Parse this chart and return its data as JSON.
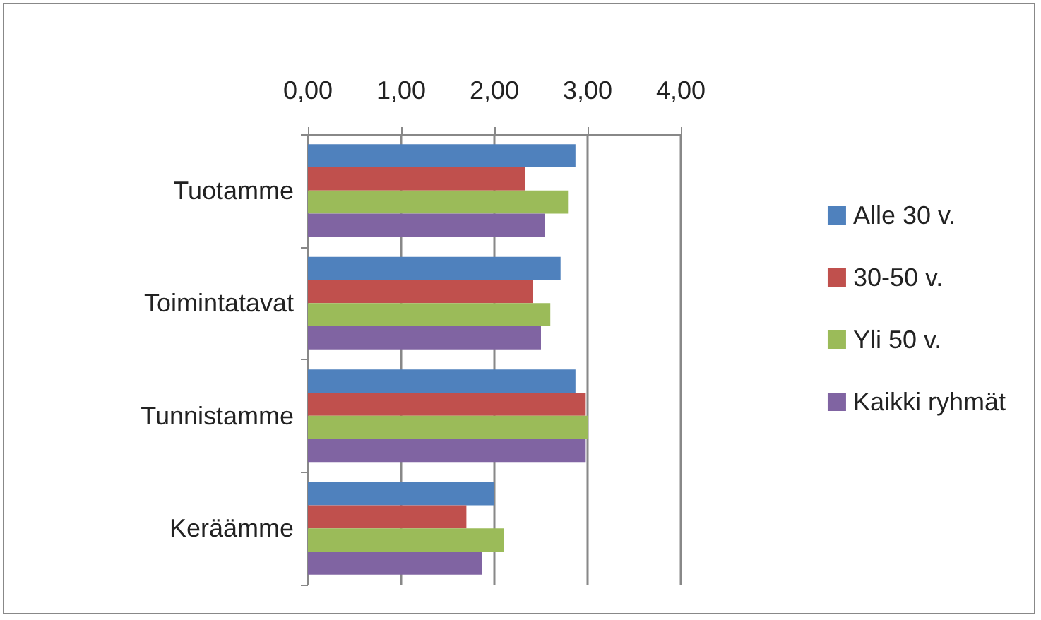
{
  "chart_data": {
    "type": "bar",
    "orientation": "horizontal",
    "categories": [
      "Tuotamme",
      "Toimintatavat",
      "Tunnistamme",
      "Keräämme"
    ],
    "series": [
      {
        "name": "Alle 30 v.",
        "color": "#4f81bd",
        "values": [
          2.87,
          2.71,
          2.87,
          2.0
        ]
      },
      {
        "name": "30-50 v.",
        "color": "#c0504d",
        "values": [
          2.33,
          2.41,
          2.98,
          1.7
        ]
      },
      {
        "name": "Yli 50 v.",
        "color": "#9bbb59",
        "values": [
          2.79,
          2.6,
          3.0,
          2.1
        ]
      },
      {
        "name": "Kaikki ryhmät",
        "color": "#8064a2",
        "values": [
          2.54,
          2.5,
          2.98,
          1.87
        ]
      }
    ],
    "xlim": [
      0,
      4
    ],
    "xticks": [
      {
        "value": 0,
        "label": "0,00"
      },
      {
        "value": 1,
        "label": "1,00"
      },
      {
        "value": 2,
        "label": "2,00"
      },
      {
        "value": 3,
        "label": "3,00"
      },
      {
        "value": 4,
        "label": "4,00"
      }
    ],
    "grid": "x",
    "legend": "right"
  }
}
